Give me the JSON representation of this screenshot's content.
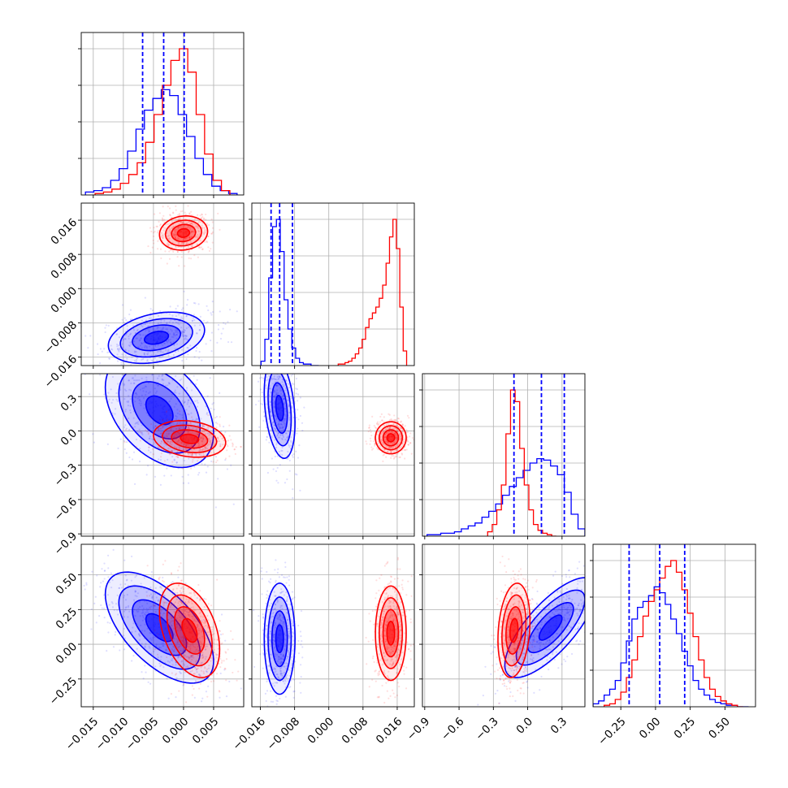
{
  "colors": {
    "blue": "#0000ff",
    "red": "#ff0000"
  },
  "chart_data": {
    "type": "corner",
    "title": "",
    "grid": true,
    "parameters": [
      {
        "name": "",
        "range": [
          -0.017,
          0.01
        ],
        "ticks": [
          -0.015,
          -0.01,
          -0.005,
          0.0,
          0.005
        ],
        "tick_labels": [
          "−0.015",
          "−0.010",
          "−0.005",
          "0.000",
          "0.005"
        ]
      },
      {
        "name": "",
        "range": [
          -0.018,
          0.02
        ],
        "ticks": [
          -0.016,
          -0.008,
          0.0,
          0.008,
          0.016
        ],
        "tick_labels": [
          "−0.016",
          "−0.008",
          "0.000",
          "0.008",
          "0.016"
        ]
      },
      {
        "name": "",
        "range": [
          -0.92,
          0.5
        ],
        "ticks": [
          -0.9,
          -0.6,
          -0.3,
          0.0,
          0.3
        ],
        "tick_labels": [
          "−0.9",
          "−0.6",
          "−0.3",
          "0.0",
          "0.3"
        ]
      },
      {
        "name": "",
        "range": [
          -0.45,
          0.72
        ],
        "ticks": [
          -0.25,
          0.0,
          0.25,
          0.5
        ],
        "tick_labels": [
          "−0.25",
          "0.00",
          "0.25",
          "0.50"
        ]
      }
    ],
    "series": [
      {
        "color": "blue",
        "quantile_lines": [
          [
            -0.0068,
            -0.0033,
            0.0001
          ],
          [
            -0.0135,
            -0.0115,
            -0.0085
          ],
          [
            -0.12,
            0.12,
            0.32
          ],
          [
            -0.19,
            0.03,
            0.21
          ]
        ],
        "histograms": [
          {
            "x": [
              -0.0156,
              -0.0142,
              -0.0128,
              -0.0114,
              -0.01,
              -0.0086,
              -0.0072,
              -0.0058,
              -0.0044,
              -0.003,
              -0.0016,
              -0.0002,
              0.0012,
              0.0026,
              0.004,
              0.0054,
              0.0068,
              0.0082
            ],
            "y": [
              2,
              3,
              5,
              10,
              18,
              30,
              45,
              58,
              66,
              72,
              68,
              55,
              40,
              25,
              14,
              6,
              3,
              1
            ]
          },
          {
            "x": [
              -0.0154,
              -0.0145,
              -0.0136,
              -0.0127,
              -0.0118,
              -0.0109,
              -0.01,
              -0.0091,
              -0.0082,
              -0.0073,
              -0.0064,
              -0.0055,
              -0.0046,
              -0.0037,
              -0.0028
            ],
            "y": [
              3,
              18,
              60,
              95,
              100,
              78,
              45,
              25,
              12,
              5,
              2,
              1,
              1,
              0,
              0
            ]
          },
          {
            "x": [
              -0.85,
              -0.79,
              -0.73,
              -0.67,
              -0.61,
              -0.55,
              -0.49,
              -0.43,
              -0.37,
              -0.31,
              -0.25,
              -0.19,
              -0.13,
              -0.07,
              -0.01,
              0.05,
              0.11,
              0.17,
              0.23,
              0.29,
              0.35,
              0.41,
              0.47
            ],
            "y": [
              1,
              1,
              2,
              2,
              3,
              5,
              7,
              9,
              13,
              17,
              22,
              28,
              34,
              40,
              45,
              50,
              53,
              52,
              48,
              42,
              30,
              15,
              5
            ]
          },
          {
            "x": [
              -0.43,
              -0.39,
              -0.35,
              -0.31,
              -0.27,
              -0.23,
              -0.19,
              -0.15,
              -0.11,
              -0.07,
              -0.03,
              0.01,
              0.05,
              0.09,
              0.13,
              0.17,
              0.21,
              0.25,
              0.29,
              0.33,
              0.37,
              0.41,
              0.45,
              0.49,
              0.53,
              0.57,
              0.61,
              0.65
            ],
            "y": [
              2,
              4,
              8,
              12,
              18,
              30,
              45,
              60,
              68,
              72,
              76,
              82,
              78,
              70,
              60,
              50,
              38,
              28,
              18,
              12,
              8,
              5,
              3,
              2,
              1,
              1,
              0,
              0
            ]
          }
        ],
        "points": [
          [
            -0.005,
            -0.0085,
            0.22,
            0.05
          ],
          [
            -0.003,
            0.0125,
            -0.08,
            0.1
          ]
        ]
      },
      {
        "color": "red",
        "histograms": [
          {
            "x": [
              -0.014,
              -0.0126,
              -0.0112,
              -0.0098,
              -0.0084,
              -0.007,
              -0.0056,
              -0.0042,
              -0.0028,
              -0.0014,
              0.0,
              0.0014,
              0.0028,
              0.0042,
              0.0056,
              0.007
            ],
            "y": [
              1,
              2,
              4,
              8,
              14,
              22,
              36,
              55,
              75,
              92,
              100,
              84,
              55,
              28,
              10,
              3
            ]
          },
          {
            "x": [
              0.0026,
              0.0034,
              0.0042,
              0.005,
              0.0058,
              0.0066,
              0.0074,
              0.0082,
              0.009,
              0.0098,
              0.0106,
              0.0114,
              0.0122,
              0.013,
              0.0138,
              0.0146,
              0.0154,
              0.0162,
              0.017,
              0.0178
            ],
            "y": [
              1,
              1,
              2,
              3,
              5,
              8,
              12,
              18,
              26,
              32,
              36,
              40,
              46,
              55,
              70,
              88,
              100,
              80,
              40,
              10
            ]
          },
          {
            "x": [
              -0.33,
              -0.29,
              -0.25,
              -0.21,
              -0.17,
              -0.13,
              -0.09,
              -0.05,
              -0.01,
              0.03,
              0.07,
              0.11,
              0.15,
              0.19,
              0.23
            ],
            "y": [
              3,
              8,
              18,
              35,
              70,
              100,
              92,
              60,
              35,
              18,
              8,
              4,
              2,
              1,
              0
            ]
          },
          {
            "x": [
              -0.35,
              -0.31,
              -0.27,
              -0.23,
              -0.19,
              -0.15,
              -0.11,
              -0.07,
              -0.03,
              0.01,
              0.05,
              0.09,
              0.13,
              0.17,
              0.21,
              0.25,
              0.29,
              0.33,
              0.37,
              0.41,
              0.45,
              0.49,
              0.53,
              0.57,
              0.61
            ],
            "y": [
              1,
              2,
              5,
              10,
              20,
              32,
              48,
              62,
              72,
              80,
              88,
              96,
              100,
              92,
              80,
              64,
              48,
              32,
              20,
              12,
              7,
              4,
              2,
              1,
              0
            ]
          }
        ]
      }
    ],
    "contours_2d": [
      {
        "color": "blue",
        "row": 1,
        "col": 0,
        "center": [
          -0.0045,
          -0.0115
        ],
        "spread": [
          0.004,
          0.003
        ],
        "corr": 0.3
      },
      {
        "color": "red",
        "row": 1,
        "col": 0,
        "center": [
          0.0,
          0.013
        ],
        "spread": [
          0.002,
          0.002
        ],
        "corr": 0.1
      },
      {
        "color": "blue",
        "row": 2,
        "col": 0,
        "center": [
          -0.004,
          0.18
        ],
        "spread": [
          0.0045,
          0.25
        ],
        "corr": -0.4
      },
      {
        "color": "red",
        "row": 2,
        "col": 0,
        "center": [
          0.001,
          -0.07
        ],
        "spread": [
          0.003,
          0.08
        ],
        "corr": -0.2
      },
      {
        "color": "blue",
        "row": 2,
        "col": 1,
        "center": [
          -0.0115,
          0.2
        ],
        "spread": [
          0.0018,
          0.22
        ],
        "corr": -0.3
      },
      {
        "color": "red",
        "row": 2,
        "col": 1,
        "center": [
          0.0145,
          -0.06
        ],
        "spread": [
          0.0018,
          0.07
        ],
        "corr": 0.0
      },
      {
        "color": "blue",
        "row": 3,
        "col": 0,
        "center": [
          -0.004,
          0.12
        ],
        "spread": [
          0.0045,
          0.2
        ],
        "corr": -0.6
      },
      {
        "color": "red",
        "row": 3,
        "col": 0,
        "center": [
          0.001,
          0.1
        ],
        "spread": [
          0.0025,
          0.17
        ],
        "corr": -0.4
      },
      {
        "color": "blue",
        "row": 3,
        "col": 1,
        "center": [
          -0.0115,
          0.04
        ],
        "spread": [
          0.0018,
          0.2
        ],
        "corr": 0.0
      },
      {
        "color": "red",
        "row": 3,
        "col": 1,
        "center": [
          0.0145,
          0.08
        ],
        "spread": [
          0.0018,
          0.17
        ],
        "corr": 0.0
      },
      {
        "color": "blue",
        "row": 3,
        "col": 2,
        "center": [
          0.2,
          0.12
        ],
        "spread": [
          0.2,
          0.18
        ],
        "corr": 0.75
      },
      {
        "color": "red",
        "row": 3,
        "col": 2,
        "center": [
          -0.12,
          0.1
        ],
        "spread": [
          0.07,
          0.17
        ],
        "corr": 0.2
      }
    ]
  }
}
